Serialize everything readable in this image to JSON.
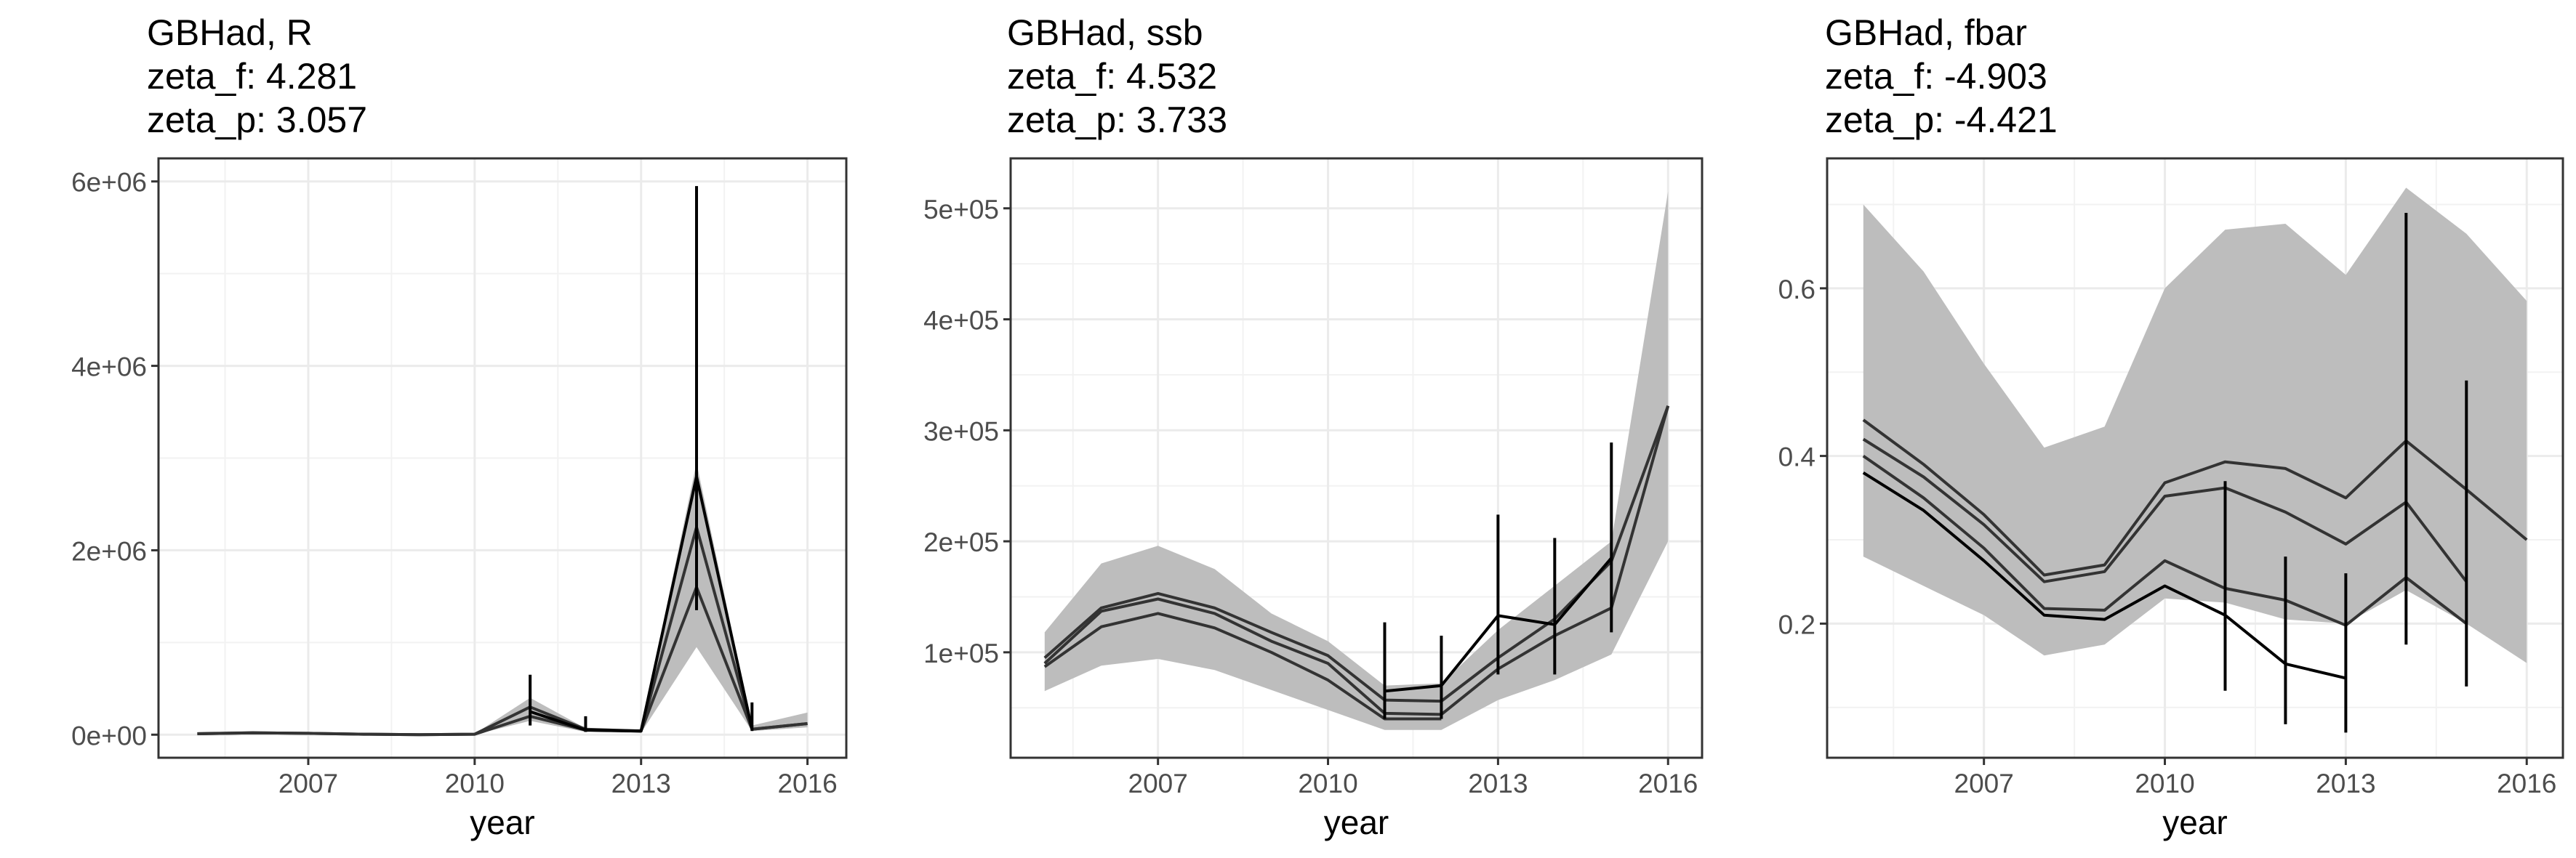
{
  "chart_data": [
    {
      "type": "line",
      "title_lines": [
        "GBHad, R",
        "zeta_f: 4.281",
        "zeta_p: 3.057"
      ],
      "xlabel": "year",
      "ylabel": "",
      "xlim": [
        2004.3,
        2016.7
      ],
      "ylim": [
        -250000,
        6250000
      ],
      "x_ticks": [
        2007,
        2010,
        2013,
        2016
      ],
      "y_ticks": [
        0,
        2000000,
        4000000,
        6000000
      ],
      "y_tick_labels": [
        "0e+00",
        "2e+06",
        "4e+06",
        "6e+06"
      ],
      "grid": true,
      "ribbon": {
        "x": [
          2005,
          2006,
          2007,
          2008,
          2009,
          2010,
          2011,
          2012,
          2013,
          2014,
          2015,
          2016
        ],
        "lower": [
          0,
          10000,
          5000,
          0,
          0,
          0,
          150000,
          30000,
          20000,
          950000,
          40000,
          80000
        ],
        "upper": [
          30000,
          40000,
          25000,
          15000,
          5000,
          10000,
          400000,
          70000,
          60000,
          2950000,
          100000,
          240000
        ]
      },
      "series": [
        {
          "values_x": [
            2005,
            2006,
            2007,
            2008,
            2009,
            2010,
            2011,
            2012,
            2013,
            2014,
            2015,
            2016
          ],
          "values_y": [
            10000,
            20000,
            15000,
            5000,
            0,
            5000,
            300000,
            60000,
            40000,
            2250000,
            60000,
            120000
          ]
        },
        {
          "values_x": [
            2005,
            2006,
            2007,
            2008,
            2009,
            2010,
            2011,
            2012,
            2013,
            2014,
            2015,
            2016
          ],
          "values_y": [
            10000,
            20000,
            15000,
            5000,
            0,
            5000,
            200000,
            50000,
            40000,
            1600000,
            60000,
            120000
          ]
        },
        {
          "values_x": [
            2011,
            2012,
            2013,
            2014,
            2015
          ],
          "values_y": [
            250000,
            50000,
            40000,
            2800000,
            60000
          ]
        }
      ],
      "error_bars": [
        {
          "x": 2011,
          "lo": 100000,
          "hi": 650000
        },
        {
          "x": 2012,
          "lo": 30000,
          "hi": 200000
        },
        {
          "x": 2014,
          "lo": 1350000,
          "hi": 5950000
        },
        {
          "x": 2015,
          "lo": 40000,
          "hi": 350000
        }
      ]
    },
    {
      "type": "line",
      "title_lines": [
        "GBHad, ssb",
        "zeta_f: 4.532",
        "zeta_p: 3.733"
      ],
      "xlabel": "year",
      "ylabel": "",
      "xlim": [
        2004.4,
        2016.6
      ],
      "ylim": [
        5000,
        545000
      ],
      "x_ticks": [
        2007,
        2010,
        2013,
        2016
      ],
      "y_ticks": [
        100000,
        200000,
        300000,
        400000,
        500000
      ],
      "y_tick_labels": [
        "1e+05",
        "2e+05",
        "3e+05",
        "4e+05",
        "5e+05"
      ],
      "grid": true,
      "ribbon": {
        "x": [
          2005,
          2006,
          2007,
          2008,
          2009,
          2010,
          2011,
          2012,
          2013,
          2014,
          2015,
          2016
        ],
        "lower": [
          65000,
          88000,
          94000,
          84000,
          66000,
          48000,
          30000,
          30000,
          57000,
          75000,
          98000,
          200000
        ],
        "upper": [
          118000,
          180000,
          196000,
          175000,
          135000,
          110000,
          70000,
          72000,
          120000,
          160000,
          200000,
          515000
        ]
      },
      "series": [
        {
          "values_x": [
            2005,
            2006,
            2007,
            2008,
            2009,
            2010,
            2011,
            2012,
            2013,
            2014,
            2015,
            2016
          ],
          "values_y": [
            95000,
            140000,
            153000,
            140000,
            118000,
            97000,
            57000,
            56000,
            95000,
            130000,
            182000,
            322000
          ]
        },
        {
          "values_x": [
            2005,
            2006,
            2007,
            2008,
            2009,
            2010,
            2011,
            2012,
            2013,
            2014,
            2015,
            2016
          ],
          "values_y": [
            90000,
            137000,
            148000,
            135000,
            110000,
            90000,
            45000,
            44000,
            85000,
            115000,
            140000,
            322000
          ]
        },
        {
          "values_x": [
            2005,
            2006,
            2007,
            2008,
            2009,
            2010,
            2011,
            2012
          ],
          "values_y": [
            87000,
            123000,
            135000,
            122000,
            100000,
            75000,
            40000,
            40000
          ]
        },
        {
          "values_x": [
            2011,
            2012,
            2013,
            2014,
            2015
          ],
          "values_y": [
            65000,
            70000,
            133000,
            125000,
            185000
          ]
        }
      ],
      "error_bars": [
        {
          "x": 2011,
          "lo": 40000,
          "hi": 127000
        },
        {
          "x": 2012,
          "lo": 40000,
          "hi": 115000
        },
        {
          "x": 2013,
          "lo": 80000,
          "hi": 224000
        },
        {
          "x": 2014,
          "lo": 80000,
          "hi": 203000
        },
        {
          "x": 2015,
          "lo": 118000,
          "hi": 289000
        }
      ]
    },
    {
      "type": "line",
      "title_lines": [
        "GBHad, fbar",
        "zeta_f: -4.903",
        "zeta_p: -4.421"
      ],
      "xlabel": "year",
      "ylabel": "",
      "xlim": [
        2004.4,
        2016.6
      ],
      "ylim": [
        0.04,
        0.755
      ],
      "x_ticks": [
        2007,
        2010,
        2013,
        2016
      ],
      "y_ticks": [
        0.2,
        0.4,
        0.6
      ],
      "y_tick_labels": [
        "0.2",
        "0.4",
        "0.6"
      ],
      "grid": true,
      "ribbon": {
        "x": [
          2005,
          2006,
          2007,
          2008,
          2009,
          2010,
          2011,
          2012,
          2013,
          2014,
          2015,
          2016
        ],
        "lower": [
          0.28,
          0.245,
          0.21,
          0.162,
          0.175,
          0.23,
          0.225,
          0.205,
          0.2,
          0.24,
          0.2,
          0.153
        ],
        "upper": [
          0.7,
          0.62,
          0.51,
          0.41,
          0.435,
          0.6,
          0.67,
          0.677,
          0.616,
          0.72,
          0.665,
          0.585
        ]
      },
      "series": [
        {
          "values_x": [
            2005,
            2006,
            2007,
            2008,
            2009,
            2010,
            2011,
            2012,
            2013,
            2014,
            2015,
            2016
          ],
          "values_y": [
            0.443,
            0.39,
            0.33,
            0.258,
            0.27,
            0.368,
            0.393,
            0.385,
            0.35,
            0.418,
            0.36,
            0.3
          ]
        },
        {
          "values_x": [
            2005,
            2006,
            2007,
            2008,
            2009,
            2010,
            2011,
            2012,
            2013,
            2014,
            2015
          ],
          "values_y": [
            0.42,
            0.375,
            0.318,
            0.25,
            0.262,
            0.352,
            0.362,
            0.333,
            0.295,
            0.345,
            0.25
          ]
        },
        {
          "values_x": [
            2005,
            2006,
            2007,
            2008,
            2009,
            2010,
            2011,
            2012,
            2013,
            2014,
            2015
          ],
          "values_y": [
            0.4,
            0.35,
            0.29,
            0.218,
            0.216,
            0.275,
            0.242,
            0.228,
            0.198,
            0.255,
            0.2
          ]
        },
        {
          "values_x": [
            2005,
            2006,
            2007,
            2008,
            2009,
            2010,
            2011,
            2012,
            2013
          ],
          "values_y": [
            0.38,
            0.335,
            0.275,
            0.21,
            0.205,
            0.245,
            0.21,
            0.152,
            0.135
          ]
        }
      ],
      "error_bars": [
        {
          "x": 2011,
          "lo": 0.12,
          "hi": 0.37
        },
        {
          "x": 2012,
          "lo": 0.08,
          "hi": 0.28
        },
        {
          "x": 2013,
          "lo": 0.07,
          "hi": 0.26
        },
        {
          "x": 2014,
          "lo": 0.175,
          "hi": 0.69
        },
        {
          "x": 2015,
          "lo": 0.125,
          "hi": 0.49
        }
      ]
    }
  ]
}
